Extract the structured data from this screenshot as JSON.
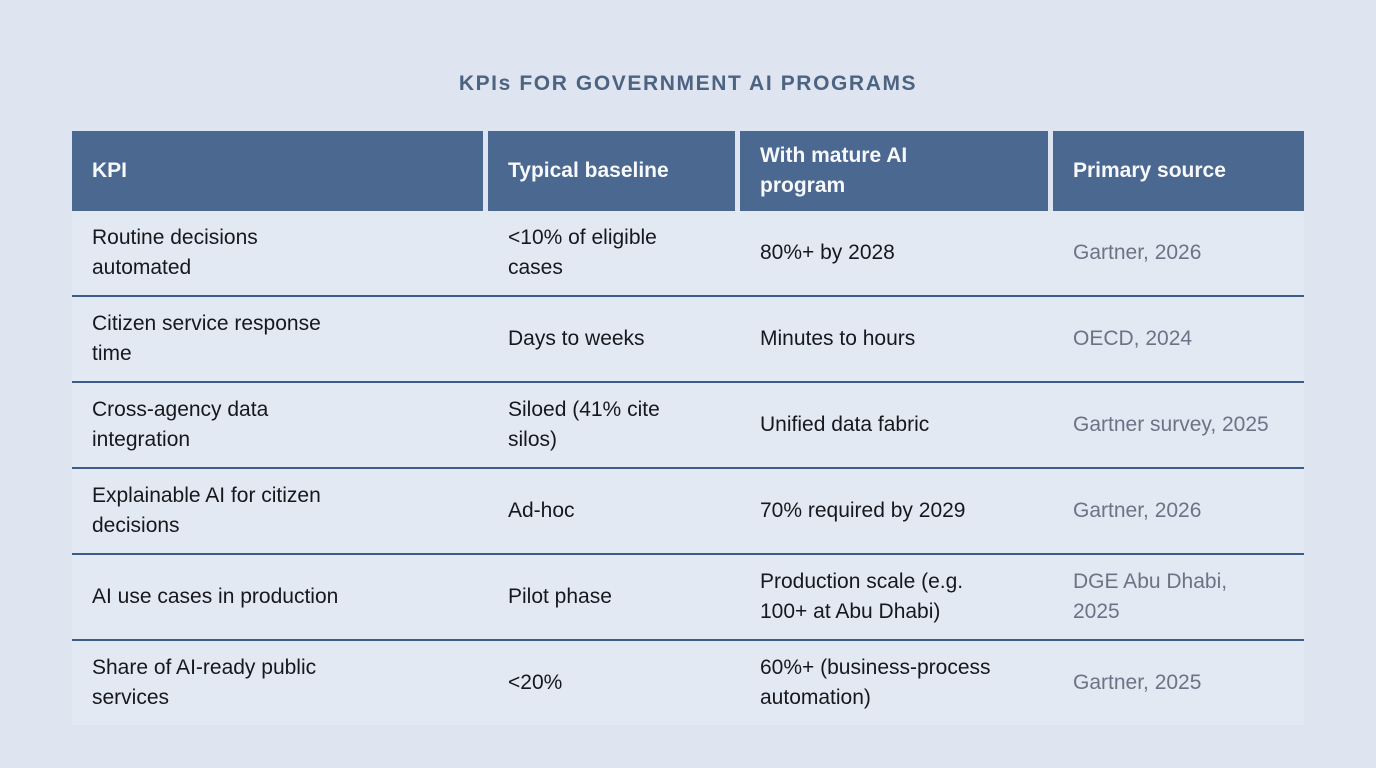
{
  "page": {
    "title": "KPIs FOR GOVERNMENT AI PROGRAMS"
  },
  "chart_data": {
    "type": "table",
    "title": "KPIs FOR GOVERNMENT AI PROGRAMS",
    "columns": [
      "KPI",
      "Typical baseline",
      "With mature AI program",
      "Primary source"
    ],
    "rows": [
      [
        "Routine decisions automated",
        "<10% of eligible cases",
        "80%+ by 2028",
        "Gartner, 2026"
      ],
      [
        "Citizen service response time",
        "Days to weeks",
        "Minutes to hours",
        "OECD, 2024"
      ],
      [
        "Cross-agency data integration",
        "Siloed (41% cite silos)",
        "Unified data fabric",
        "Gartner survey, 2025"
      ],
      [
        "Explainable AI for citizen decisions",
        "Ad-hoc",
        "70% required by 2029",
        "Gartner, 2026"
      ],
      [
        "AI use cases in production",
        "Pilot phase",
        "Production scale (e.g. 100+ at Abu Dhabi)",
        "DGE Abu Dhabi, 2025"
      ],
      [
        "Share of AI-ready public services",
        "<20%",
        "60%+ (business-process automation)",
        "Gartner, 2025"
      ]
    ]
  },
  "colors": {
    "page_background": "#dfe5f0",
    "row_background": "#e3e9f3",
    "header_background": "#4a6890",
    "header_text": "#f7f9fc",
    "title_text": "#4d6382",
    "body_text": "#16181d",
    "source_text": "#6b7486",
    "row_separator": "#3d5c87"
  }
}
